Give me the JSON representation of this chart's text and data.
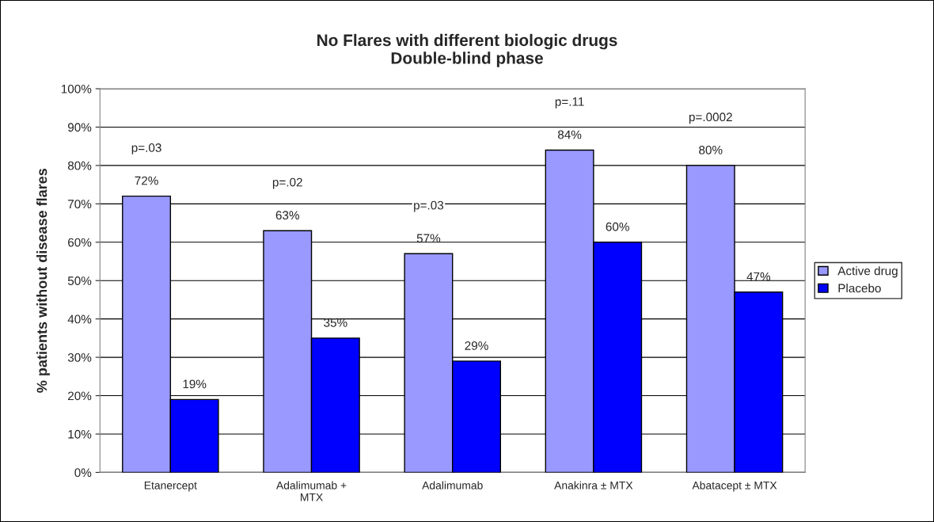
{
  "chart_data": {
    "type": "bar",
    "title": "No Flares with different biologic drugs\nDouble-blind phase",
    "ylabel": "% patients without disease flares",
    "categories": [
      "Etanercept",
      "Adalimumab +\nMTX",
      "Adalimumab",
      "Anakinra ± MTX",
      "Abatacept ± MTX"
    ],
    "series": [
      {
        "name": "Active drug",
        "color": "#9999ff",
        "values": [
          72,
          63,
          57,
          84,
          80
        ],
        "value_labels": [
          "72%",
          "63%",
          "57%",
          "84%",
          "80%"
        ]
      },
      {
        "name": "Placebo",
        "color": "#0000ff",
        "values": [
          19,
          35,
          29,
          60,
          47
        ],
        "value_labels": [
          "19%",
          "35%",
          "29%",
          "60%",
          "47%"
        ]
      }
    ],
    "ylim": [
      0,
      100
    ],
    "yticks": [
      {
        "value": 0,
        "label": "0%"
      },
      {
        "value": 10,
        "label": "10%"
      },
      {
        "value": 20,
        "label": "20%"
      },
      {
        "value": 30,
        "label": "30%"
      },
      {
        "value": 40,
        "label": "40%"
      },
      {
        "value": 50,
        "label": "50%"
      },
      {
        "value": 60,
        "label": "60%"
      },
      {
        "value": 70,
        "label": "70%"
      },
      {
        "value": 80,
        "label": "80%"
      },
      {
        "value": 90,
        "label": "90%"
      },
      {
        "value": 100,
        "label": "100%"
      }
    ],
    "annotations": [
      "p=.03",
      "p=.02",
      "p=.03",
      "p=.11",
      "p=.0002"
    ],
    "grid": "y",
    "legend": "right"
  }
}
